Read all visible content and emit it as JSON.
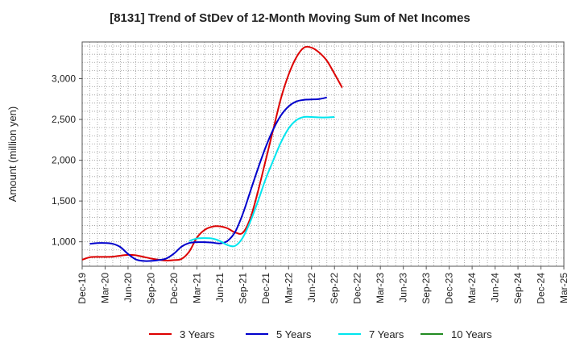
{
  "chart_data": {
    "type": "line",
    "title": "[8131]  Trend of StDev of 12-Month Moving Sum of Net Incomes",
    "xlabel": "",
    "ylabel": "Amount (million yen)",
    "ylim": [
      700,
      3450
    ],
    "yticks": [
      1000,
      1500,
      2000,
      2500,
      3000
    ],
    "ytick_labels": [
      "1,000",
      "1,500",
      "2,000",
      "2,500",
      "3,000"
    ],
    "xtick_labels": [
      "Dec-19",
      "Mar-20",
      "Jun-20",
      "Sep-20",
      "Dec-20",
      "Mar-21",
      "Jun-21",
      "Sep-21",
      "Dec-21",
      "Mar-22",
      "Jun-22",
      "Sep-22",
      "Dec-22",
      "Mar-23",
      "Jun-23",
      "Sep-23",
      "Dec-23",
      "Mar-24",
      "Jun-24",
      "Sep-24",
      "Dec-24",
      "Mar-25"
    ],
    "grid": true,
    "legend_position": "bottom",
    "series": [
      {
        "name": "3 Years",
        "color": "#dd0000",
        "start_index": 0,
        "values": [
          780,
          810,
          815,
          815,
          818,
          830,
          840,
          835,
          815,
          795,
          780,
          770,
          775,
          790,
          880,
          1050,
          1145,
          1185,
          1190,
          1165,
          1115,
          1110,
          1290,
          1620,
          2000,
          2380,
          2760,
          3050,
          3260,
          3380,
          3380,
          3320,
          3220,
          3060,
          2890
        ]
      },
      {
        "name": "5 Years",
        "color": "#0000cc",
        "start_index": 1,
        "values": [
          975,
          985,
          985,
          975,
          935,
          850,
          785,
          765,
          765,
          775,
          795,
          855,
          940,
          985,
          995,
          995,
          990,
          980,
          1010,
          1120,
          1340,
          1620,
          1900,
          2160,
          2380,
          2550,
          2660,
          2720,
          2740,
          2745,
          2750,
          2770
        ]
      },
      {
        "name": "7 Years",
        "color": "#00e5ee",
        "start_index": 14,
        "values": [
          1010,
          1040,
          1045,
          1040,
          1010,
          960,
          950,
          1050,
          1250,
          1500,
          1770,
          2000,
          2220,
          2390,
          2490,
          2530,
          2530,
          2525,
          2525,
          2530
        ]
      },
      {
        "name": "10 Years",
        "color": "#228b22",
        "start_index": 0,
        "values": []
      }
    ]
  }
}
